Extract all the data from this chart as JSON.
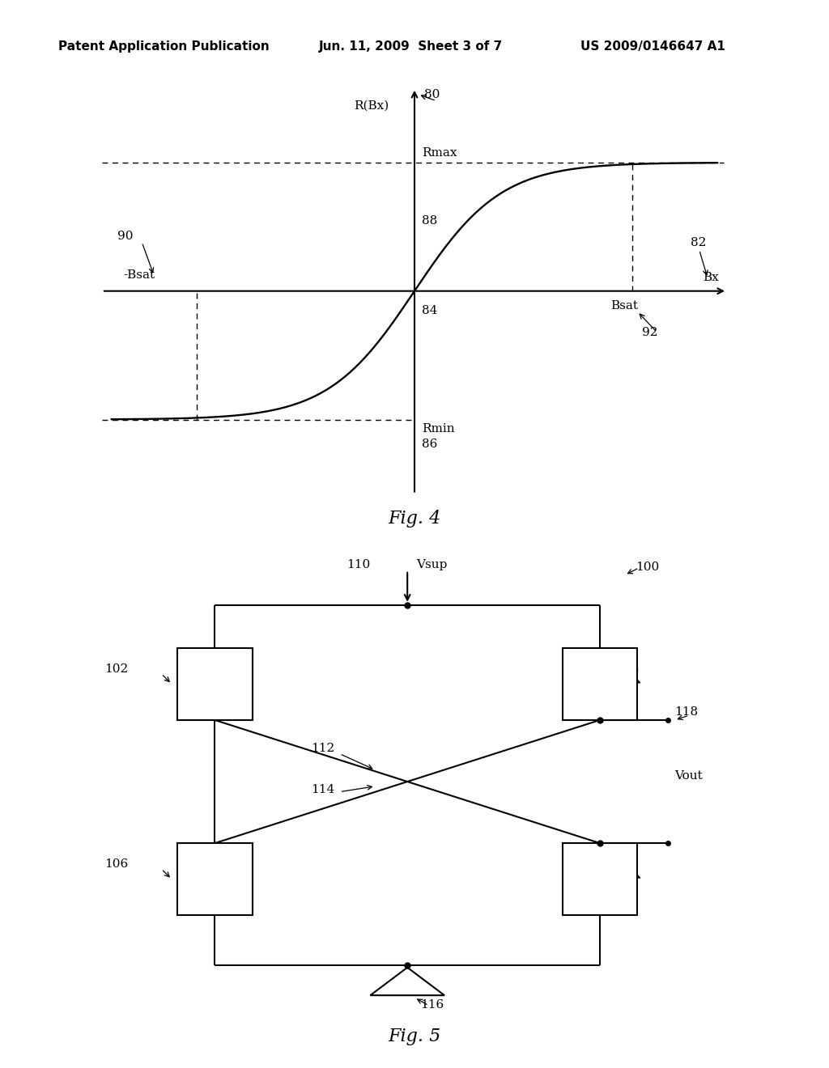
{
  "page_bg": "#ffffff",
  "header_left": "Patent Application Publication",
  "header_mid": "Jun. 11, 2009  Sheet 3 of 7",
  "header_right": "US 2009/0146647 A1",
  "header_fontsize": 11,
  "fig4_title": "Fig. 4",
  "fig5_title": "Fig. 5",
  "line_color": "#000000",
  "lw_main": 1.5,
  "lw_dash": 1.0,
  "font_size": 11
}
